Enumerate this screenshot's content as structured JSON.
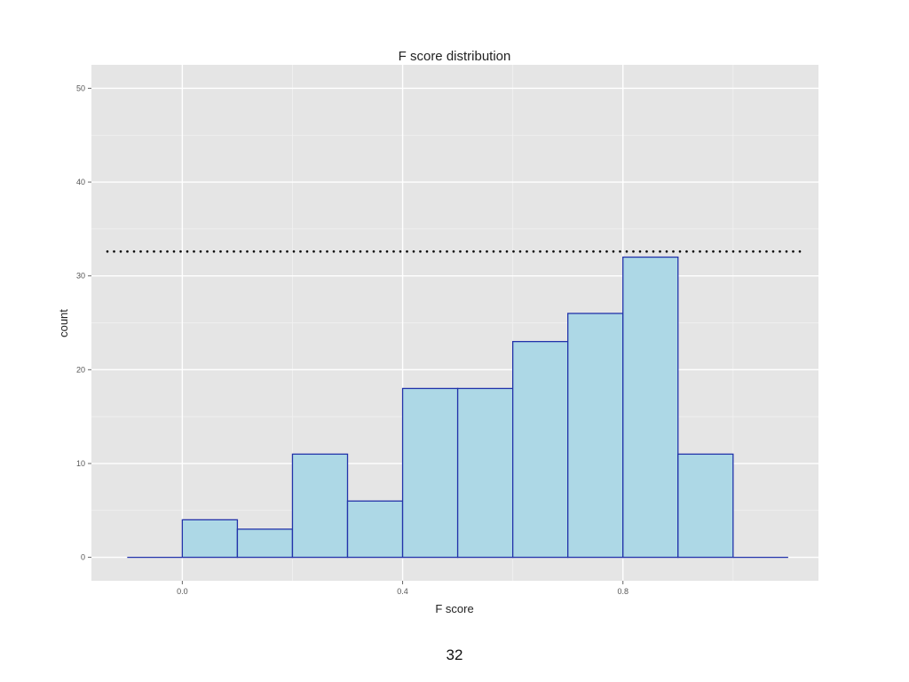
{
  "slide": {
    "page_number": "32"
  },
  "chart_data": {
    "type": "bar",
    "title": "F score distribution",
    "xlabel": "F score",
    "ylabel": "count",
    "bin_width": 0.1,
    "bins": [
      {
        "start": -0.1,
        "end": 0.0,
        "count": 0
      },
      {
        "start": 0.0,
        "end": 0.1,
        "count": 4
      },
      {
        "start": 0.1,
        "end": 0.2,
        "count": 3
      },
      {
        "start": 0.2,
        "end": 0.3,
        "count": 11
      },
      {
        "start": 0.3,
        "end": 0.4,
        "count": 6
      },
      {
        "start": 0.4,
        "end": 0.5,
        "count": 18
      },
      {
        "start": 0.5,
        "end": 0.6,
        "count": 18
      },
      {
        "start": 0.6,
        "end": 0.7,
        "count": 23
      },
      {
        "start": 0.7,
        "end": 0.8,
        "count": 26
      },
      {
        "start": 0.8,
        "end": 0.9,
        "count": 32
      },
      {
        "start": 0.9,
        "end": 1.0,
        "count": 11
      },
      {
        "start": 1.0,
        "end": 1.1,
        "count": 0
      }
    ],
    "xlim": [
      -0.165,
      1.155
    ],
    "ylim": [
      -2.5,
      52.5
    ],
    "x_ticks": [
      0.0,
      0.4,
      0.8
    ],
    "x_tick_labels": [
      "0.0",
      "0.4",
      "0.8"
    ],
    "y_ticks": [
      0,
      10,
      20,
      30,
      40,
      50
    ],
    "y_tick_labels": [
      "0",
      "10",
      "20",
      "30",
      "40",
      "50"
    ],
    "reference_line": {
      "y": 32.6,
      "style": "dotted",
      "color": "#000000"
    },
    "grid": true,
    "legend": "none",
    "colors": {
      "panel_background": "#e5e5e5",
      "grid_major": "#ffffff",
      "grid_minor": "#f2f2f2",
      "bar_fill": "#add8e6",
      "bar_outline": "#2233aa"
    }
  }
}
